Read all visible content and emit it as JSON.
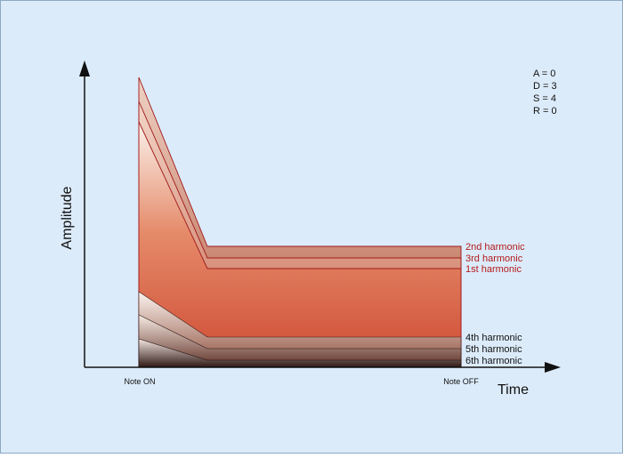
{
  "diagram": {
    "axes": {
      "y_label": "Amplitude",
      "x_label": "Time"
    },
    "markers": {
      "note_on": "Note ON",
      "note_off": "Note OFF"
    },
    "adsr_params": [
      "A = 0",
      "D = 3",
      "S = 4",
      "R = 0"
    ],
    "harmonic_labels": [
      {
        "text": "2nd harmonic",
        "color": "#b31b1b"
      },
      {
        "text": "3rd harmonic",
        "color": "#b31b1b"
      },
      {
        "text": "1st harmonic",
        "color": "#b31b1b"
      },
      {
        "text": "4th harmonic",
        "color": "#111111"
      },
      {
        "text": "5th harmonic",
        "color": "#111111"
      },
      {
        "text": "6th harmonic",
        "color": "#111111"
      }
    ],
    "colors": {
      "background": "#dcebfa",
      "border": "#8ea9c4",
      "outline_red": "#a01818",
      "axis": "#111111"
    }
  }
}
